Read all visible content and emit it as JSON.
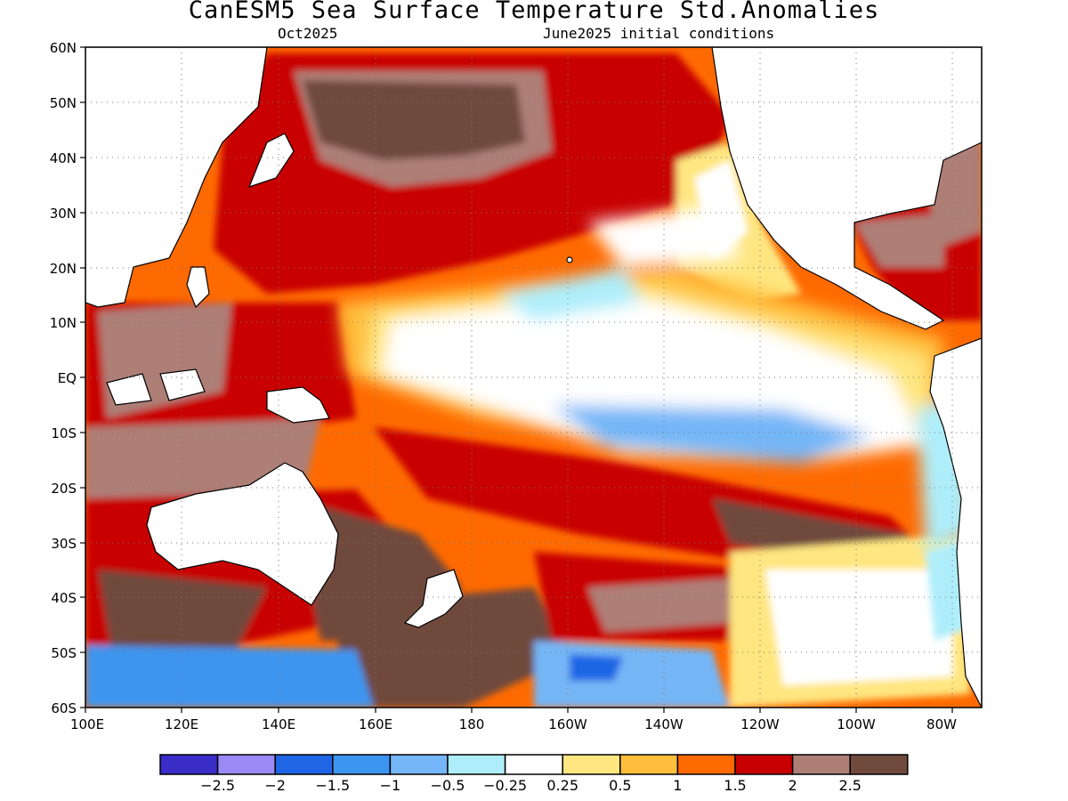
{
  "title": "CanESM5 Sea Surface Temperature Std.Anomalies",
  "subtitle_left": "Oct2025",
  "subtitle_right": "June2025 initial conditions",
  "axes": {
    "lat_labels": [
      "60N",
      "50N",
      "40N",
      "30N",
      "20N",
      "10N",
      "EQ",
      "10S",
      "20S",
      "30S",
      "40S",
      "50S",
      "60S"
    ],
    "lon_labels": [
      "100E",
      "120E",
      "140E",
      "160E",
      "180",
      "160W",
      "140W",
      "120W",
      "100W",
      "80W"
    ],
    "lat_range": [
      -60,
      60
    ],
    "lon_range": [
      "100E",
      "70W"
    ],
    "grid": "dotted"
  },
  "colorbar": {
    "colors": [
      "#3a2dc8",
      "#9b8af5",
      "#1f66e6",
      "#3c95f0",
      "#74b6f7",
      "#aeeefa",
      "#ffffff",
      "#ffe680",
      "#ffbf3c",
      "#ff6a00",
      "#c80000",
      "#ad7f77",
      "#704a3c"
    ],
    "labels": [
      "−2.5",
      "−2",
      "−1.5",
      "−1",
      "−0.5",
      "−0.25",
      "0.25",
      "0.5",
      "1",
      "1.5",
      "2",
      "2.5"
    ]
  },
  "map_features": {
    "regions": [
      "Pacific Ocean",
      "Maritime Continent",
      "Australia",
      "North America",
      "South America"
    ],
    "patterns": [
      {
        "region": "Equatorial eastern Pacific",
        "anomaly": "near zero to slightly negative (-0.25 to -1)"
      },
      {
        "region": "North Pacific",
        "anomaly": "strongly positive (1.5 to >2.5)"
      },
      {
        "region": "Western tropical Pacific / Maritime Continent",
        "anomaly": "strongly positive (1.5 to >2.5)"
      },
      {
        "region": "South Pacific mid-latitudes",
        "anomaly": "positive (0.5 to >2.5)"
      },
      {
        "region": "Southern Ocean near 55S-60S",
        "anomaly": "negative (-0.5 to -2.5)"
      }
    ]
  }
}
